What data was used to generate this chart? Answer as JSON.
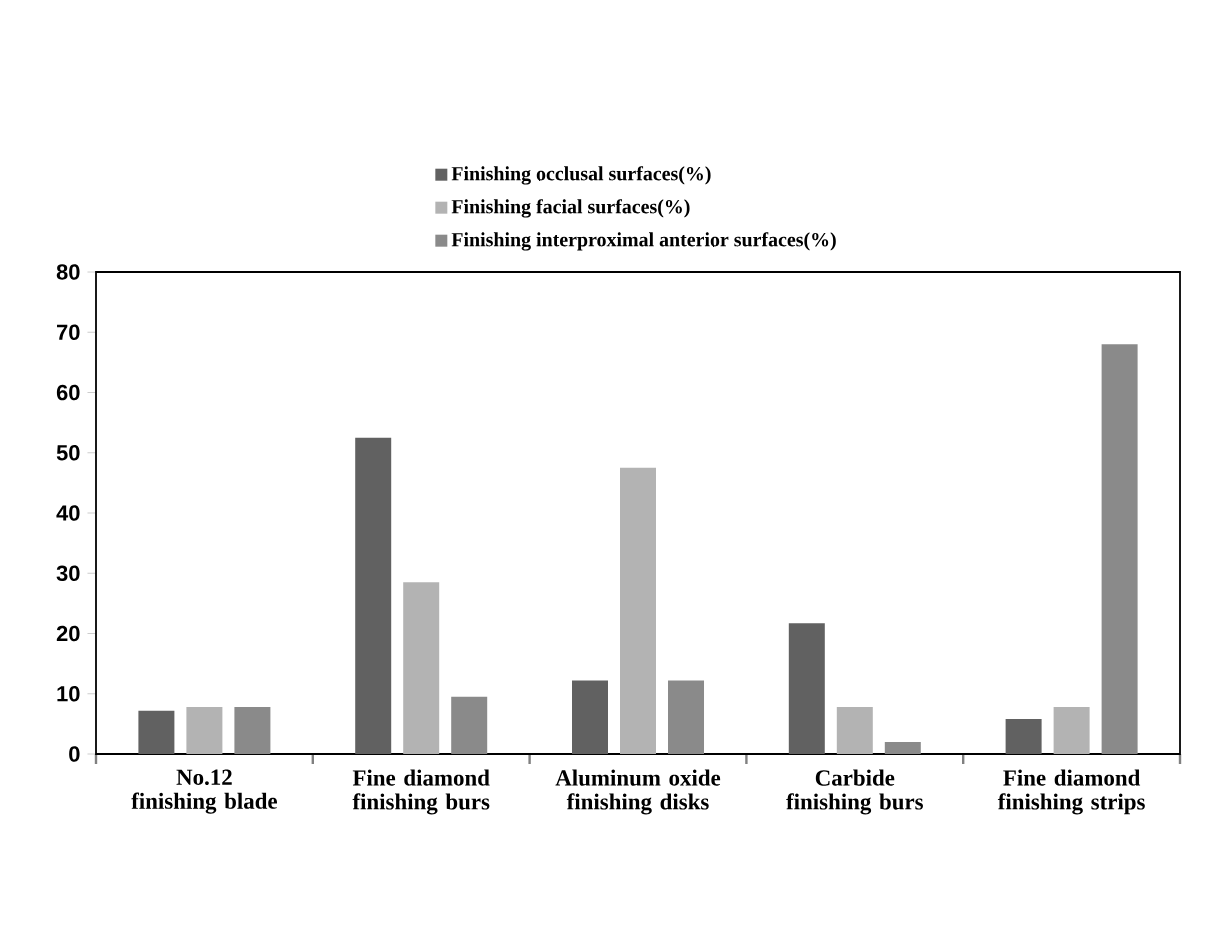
{
  "chart_data": {
    "type": "bar",
    "categories": [
      "No.12 finishing blade",
      "Fine diamond finishing burs",
      "Aluminum oxide finishing disks",
      "Carbide finishing burs",
      "Fine diamond finishing strips"
    ],
    "series": [
      {
        "name": "Finishing occlusal surfaces(%)",
        "color": "#616161",
        "values": [
          7.2,
          52.5,
          12.2,
          21.7,
          5.8
        ]
      },
      {
        "name": "Finishing facial surfaces(%)",
        "color": "#b3b3b3",
        "values": [
          7.8,
          28.5,
          47.5,
          7.8,
          7.8
        ]
      },
      {
        "name": "Finishing interproximal anterior surfaces(%)",
        "color": "#8a8a8a",
        "values": [
          7.8,
          9.5,
          12.2,
          2,
          68
        ]
      }
    ],
    "ylim": [
      0,
      80
    ],
    "yticks": [
      0,
      10,
      20,
      30,
      40,
      50,
      60,
      70,
      80
    ],
    "grid": false,
    "legend": "top"
  }
}
